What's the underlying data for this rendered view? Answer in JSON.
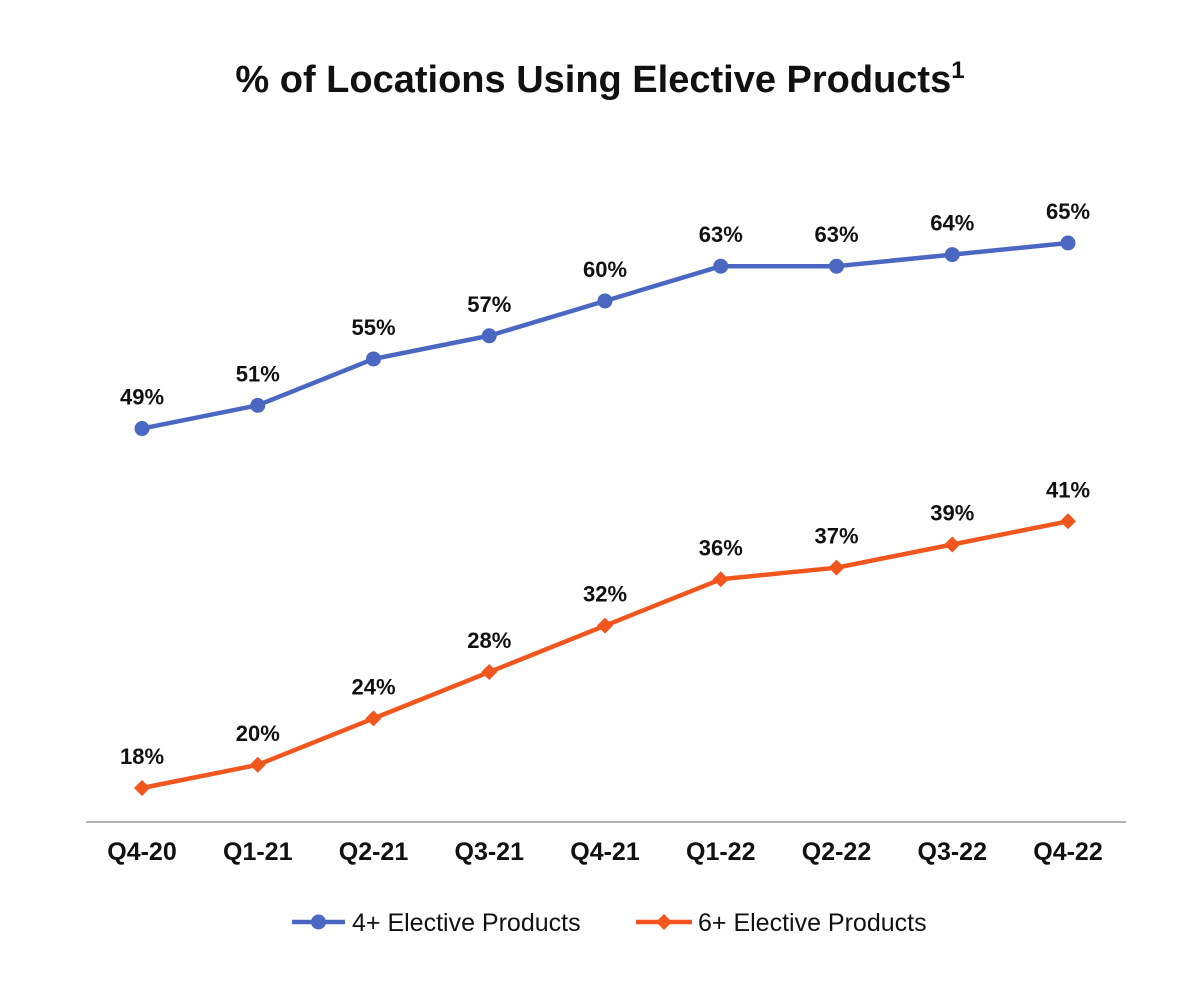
{
  "chart_data": {
    "type": "line",
    "title": "% of Locations Using Elective Products",
    "title_superscript": "1",
    "categories": [
      "Q4-20",
      "Q1-21",
      "Q2-21",
      "Q3-21",
      "Q4-21",
      "Q1-22",
      "Q2-22",
      "Q3-22",
      "Q4-22"
    ],
    "series": [
      {
        "name": "4+ Elective Products",
        "values": [
          49,
          51,
          55,
          57,
          60,
          63,
          63,
          64,
          65
        ],
        "labels": [
          "49%",
          "51%",
          "55%",
          "57%",
          "60%",
          "63%",
          "63%",
          "64%",
          "65%"
        ],
        "color": "#4a68c2",
        "marker": "circle"
      },
      {
        "name": "6+ Elective Products",
        "values": [
          18,
          20,
          24,
          28,
          32,
          36,
          37,
          39,
          41
        ],
        "labels": [
          "18%",
          "20%",
          "24%",
          "28%",
          "32%",
          "36%",
          "37%",
          "39%",
          "41%"
        ],
        "color": "#f0561e",
        "marker": "diamond"
      }
    ],
    "xlabel": "",
    "ylabel": "",
    "ylim": [
      13,
      70
    ],
    "grid": false,
    "legend_position": "bottom"
  }
}
